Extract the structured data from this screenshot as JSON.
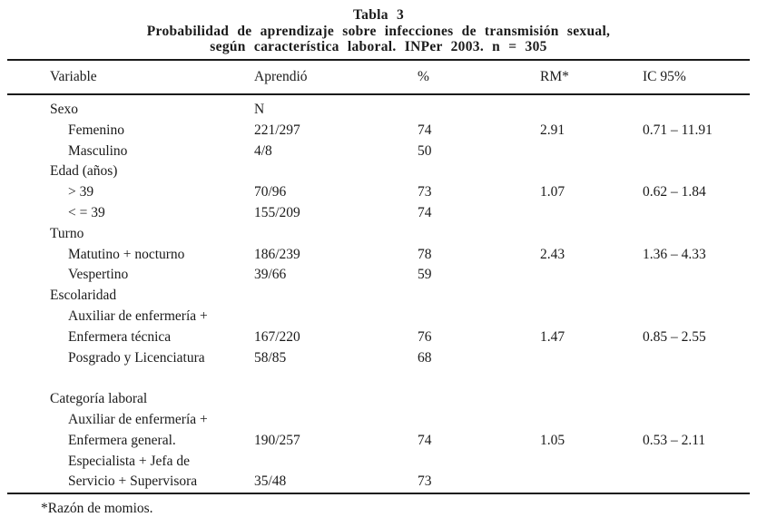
{
  "title": {
    "line1": "Tabla 3",
    "line2": "Probabilidad de aprendizaje sobre infecciones de transmisión sexual,",
    "line3": "según característica laboral. INPer 2003. n = 305"
  },
  "table": {
    "columns": [
      "Variable",
      "Aprendió",
      "%",
      "RM*",
      "IC 95%"
    ],
    "rows": [
      {
        "variable": "Sexo",
        "indent": false,
        "aprendio": "N",
        "pct": "",
        "rm": "",
        "ic": ""
      },
      {
        "variable": "Femenino",
        "indent": true,
        "aprendio": "221/297",
        "pct": "74",
        "rm": "2.91",
        "ic": "0.71 – 11.91"
      },
      {
        "variable": "Masculino",
        "indent": true,
        "aprendio": "4/8",
        "pct": "50",
        "rm": "",
        "ic": ""
      },
      {
        "variable": "Edad (años)",
        "indent": false,
        "aprendio": "",
        "pct": "",
        "rm": "",
        "ic": ""
      },
      {
        "variable": "> 39",
        "indent": true,
        "aprendio": "70/96",
        "pct": "73",
        "rm": "1.07",
        "ic": "0.62 – 1.84"
      },
      {
        "variable": "< = 39",
        "indent": true,
        "aprendio": "155/209",
        "pct": "74",
        "rm": "",
        "ic": ""
      },
      {
        "variable": "Turno",
        "indent": false,
        "aprendio": "",
        "pct": "",
        "rm": "",
        "ic": ""
      },
      {
        "variable": "Matutino + nocturno",
        "indent": true,
        "aprendio": "186/239",
        "pct": "78",
        "rm": "2.43",
        "ic": "1.36 – 4.33"
      },
      {
        "variable": "Vespertino",
        "indent": true,
        "aprendio": "39/66",
        "pct": "59",
        "rm": "",
        "ic": ""
      },
      {
        "variable": "Escolaridad",
        "indent": false,
        "aprendio": "",
        "pct": "",
        "rm": "",
        "ic": ""
      },
      {
        "variable": "Auxiliar de enfermería +",
        "indent": true,
        "aprendio": "",
        "pct": "",
        "rm": "",
        "ic": ""
      },
      {
        "variable": "Enfermera técnica",
        "indent": true,
        "aprendio": "167/220",
        "pct": "76",
        "rm": "1.47",
        "ic": "0.85 – 2.55"
      },
      {
        "variable": "Posgrado y Licenciatura",
        "indent": true,
        "aprendio": "58/85",
        "pct": "68",
        "rm": "",
        "ic": ""
      },
      {
        "variable": "",
        "indent": false,
        "aprendio": "",
        "pct": "",
        "rm": "",
        "ic": ""
      },
      {
        "variable": "Categoría laboral",
        "indent": false,
        "aprendio": "",
        "pct": "",
        "rm": "",
        "ic": ""
      },
      {
        "variable": "Auxiliar de enfermería +",
        "indent": true,
        "aprendio": "",
        "pct": "",
        "rm": "",
        "ic": ""
      },
      {
        "variable": "Enfermera general.",
        "indent": true,
        "aprendio": "190/257",
        "pct": "74",
        "rm": "1.05",
        "ic": "0.53 – 2.11"
      },
      {
        "variable": "Especialista + Jefa de",
        "indent": true,
        "aprendio": "",
        "pct": "",
        "rm": "",
        "ic": ""
      },
      {
        "variable": "Servicio + Supervisora",
        "indent": true,
        "aprendio": "35/48",
        "pct": "73",
        "rm": "",
        "ic": ""
      }
    ]
  },
  "footnote": "*Razón de momios."
}
